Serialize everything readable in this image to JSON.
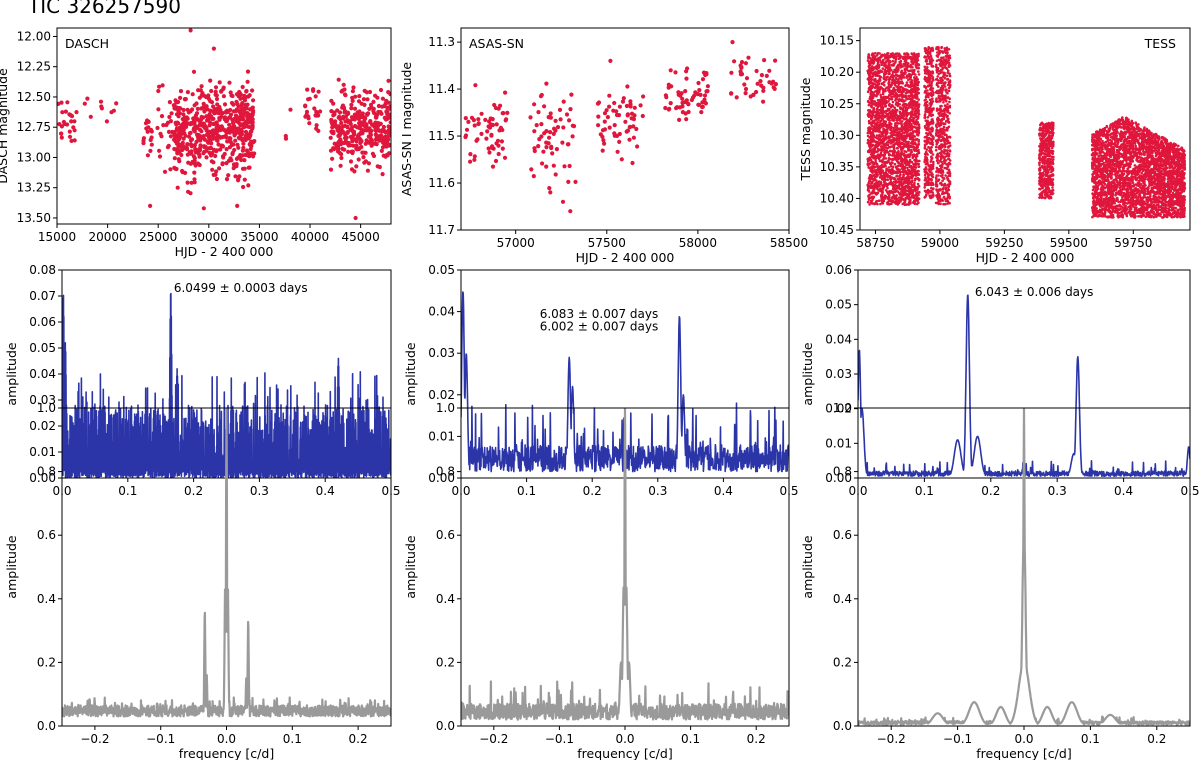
{
  "figure_title": "TIC 326257590",
  "colors": {
    "light_curve": "#e0163c",
    "periodogram": "#2b35a8",
    "window": "#9a9a9a"
  },
  "chart_data": [
    {
      "id": "p11",
      "type": "scatter",
      "label": "DASCH",
      "xlabel": "HJD - 2 400 000",
      "ylabel": "DASCH magnitude",
      "xlim": [
        15000,
        48000
      ],
      "ylim": [
        13.55,
        11.93
      ],
      "y_inverted": true,
      "xticks": [
        15000,
        20000,
        25000,
        30000,
        35000,
        40000,
        45000
      ],
      "xtick_labels": [
        "15000",
        "20000",
        "25000",
        "30000",
        "35000",
        "40000",
        "45000"
      ],
      "yticks": [
        12.0,
        12.25,
        12.5,
        12.75,
        13.0,
        13.25,
        13.5
      ],
      "ytick_labels": [
        "12.00",
        "12.25",
        "12.50",
        "12.75",
        "13.00",
        "13.25",
        "13.50"
      ],
      "clusters": [
        {
          "x": [
            15100,
            17000
          ],
          "y_center": 12.7,
          "y_spread": 0.28,
          "n": 25
        },
        {
          "x": [
            17500,
            22000
          ],
          "y_center": 12.65,
          "y_spread": 0.25,
          "n": 10
        },
        {
          "x": [
            23500,
            26500
          ],
          "y_center": 12.75,
          "y_spread": 0.4,
          "n": 40
        },
        {
          "x": [
            26500,
            34500
          ],
          "y_center": 12.78,
          "y_spread": 0.55,
          "n": 600
        },
        {
          "x": [
            37500,
            38500
          ],
          "y_center": 12.8,
          "y_spread": 0.45,
          "n": 3
        },
        {
          "x": [
            39500,
            41000
          ],
          "y_center": 12.6,
          "y_spread": 0.3,
          "n": 25
        },
        {
          "x": [
            42000,
            48000
          ],
          "y_center": 12.75,
          "y_spread": 0.45,
          "n": 340
        }
      ],
      "outliers": [
        {
          "x": 28200,
          "y": 11.95
        },
        {
          "x": 29500,
          "y": 13.42
        },
        {
          "x": 24200,
          "y": 13.4
        },
        {
          "x": 32800,
          "y": 13.4
        },
        {
          "x": 44500,
          "y": 13.5
        },
        {
          "x": 30500,
          "y": 12.1
        }
      ]
    },
    {
      "id": "p12",
      "type": "scatter",
      "label": "ASAS-SN",
      "xlabel": "HJD - 2 400 000",
      "ylabel": "ASAS-SN I magnitude",
      "xlim": [
        56700,
        58500
      ],
      "ylim": [
        11.7,
        11.27
      ],
      "y_inverted": true,
      "xticks": [
        57000,
        57500,
        58000,
        58500
      ],
      "xtick_labels": [
        "57000",
        "57500",
        "58000",
        "58500"
      ],
      "yticks": [
        11.3,
        11.4,
        11.5,
        11.6,
        11.7
      ],
      "ytick_labels": [
        "11.3",
        "11.4",
        "11.5",
        "11.6",
        "11.7"
      ],
      "clusters": [
        {
          "x": [
            56720,
            56960
          ],
          "y_center": 11.49,
          "y_spread": 0.11,
          "n": 60
        },
        {
          "x": [
            57080,
            57330
          ],
          "y_center": 11.5,
          "y_spread": 0.13,
          "n": 60
        },
        {
          "x": [
            57450,
            57700
          ],
          "y_center": 11.47,
          "y_spread": 0.1,
          "n": 60
        },
        {
          "x": [
            57820,
            58060
          ],
          "y_center": 11.42,
          "y_spread": 0.08,
          "n": 60
        },
        {
          "x": [
            58180,
            58430
          ],
          "y_center": 11.38,
          "y_spread": 0.08,
          "n": 40
        }
      ],
      "outliers": [
        {
          "x": 58190,
          "y": 11.3
        },
        {
          "x": 57300,
          "y": 11.66
        },
        {
          "x": 57260,
          "y": 11.64
        },
        {
          "x": 57520,
          "y": 11.34
        },
        {
          "x": 57190,
          "y": 11.62
        }
      ]
    },
    {
      "id": "p13",
      "type": "scatter",
      "label": "TESS",
      "xlabel": "HJD - 2 400 000",
      "ylabel": "TESS magnitude",
      "xlim": [
        58690,
        59970
      ],
      "ylim": [
        10.45,
        10.13
      ],
      "y_inverted": true,
      "xticks": [
        58750,
        59000,
        59250,
        59500,
        59750
      ],
      "xtick_labels": [
        "58750",
        "59000",
        "59250",
        "59500",
        "59750"
      ],
      "yticks": [
        10.15,
        10.2,
        10.25,
        10.3,
        10.35,
        10.4,
        10.45
      ],
      "ytick_labels": [
        "10.15",
        "10.20",
        "10.25",
        "10.30",
        "10.35",
        "10.40",
        "10.45"
      ],
      "clusters": [
        {
          "x": [
            58720,
            58920
          ],
          "y_range": [
            10.17,
            10.41
          ],
          "n": 2600,
          "dense": true
        },
        {
          "x": [
            58940,
            58975
          ],
          "y_range": [
            10.16,
            10.4
          ],
          "n": 400,
          "dense": true
        },
        {
          "x": [
            58985,
            59040
          ],
          "y_range": [
            10.16,
            10.41
          ],
          "n": 600,
          "dense": true
        },
        {
          "x": [
            59385,
            59440
          ],
          "y_range": [
            10.28,
            10.4
          ],
          "n": 500,
          "dense": true
        },
        {
          "x": [
            59590,
            59950
          ],
          "y_range": [
            10.27,
            10.43
          ],
          "n": 3500,
          "dense": true,
          "bulge": true
        }
      ]
    },
    {
      "id": "p21",
      "type": "line",
      "series_role": "periodogram",
      "ylabel": "amplitude",
      "xlim": [
        0,
        0.5
      ],
      "ylim": [
        0,
        0.08
      ],
      "xticks": [
        0,
        0.1,
        0.2,
        0.3,
        0.4,
        0.5
      ],
      "xtick_labels": [
        "0.0",
        "0.1",
        "0.2",
        "0.3",
        "0.4",
        "0.5"
      ],
      "yticks": [
        0,
        0.01,
        0.02,
        0.03,
        0.04,
        0.05,
        0.06,
        0.07,
        0.08
      ],
      "ytick_labels": [
        "0.00",
        "0.01",
        "0.02",
        "0.03",
        "0.04",
        "0.05",
        "0.06",
        "0.07",
        "0.08"
      ],
      "noise": {
        "base": 0.028,
        "min": 0.0,
        "spikes_to": 0.041
      },
      "peaks": [
        {
          "x": 0.002,
          "y": 0.071,
          "w": 0.0015
        },
        {
          "x": 0.005,
          "y": 0.052,
          "w": 0.0015
        },
        {
          "x": 0.1653,
          "y": 0.072,
          "w": 0.0015
        },
        {
          "x": 0.175,
          "y": 0.042,
          "w": 0.0015
        },
        {
          "x": 0.42,
          "y": 0.046,
          "w": 0.0015
        }
      ],
      "annotations": [
        {
          "text": "6.0499 ± 0.0003 days",
          "x": 0.17,
          "y": 0.0715
        }
      ]
    },
    {
      "id": "p22",
      "type": "line",
      "series_role": "periodogram",
      "ylabel": "amplitude",
      "xlim": [
        0,
        0.5
      ],
      "ylim": [
        0,
        0.05
      ],
      "xticks": [
        0,
        0.1,
        0.2,
        0.3,
        0.4,
        0.5
      ],
      "xtick_labels": [
        "0.0",
        "0.1",
        "0.2",
        "0.3",
        "0.4",
        "0.5"
      ],
      "yticks": [
        0,
        0.01,
        0.02,
        0.03,
        0.04,
        0.05
      ],
      "ytick_labels": [
        "0.00",
        "0.01",
        "0.02",
        "0.03",
        "0.04",
        "0.05"
      ],
      "noise": {
        "base": 0.008,
        "min": 0.0015,
        "spikes_to": 0.018
      },
      "peaks": [
        {
          "x": 0.003,
          "y": 0.045,
          "w": 0.002
        },
        {
          "x": 0.008,
          "y": 0.03,
          "w": 0.002
        },
        {
          "x": 0.165,
          "y": 0.029,
          "w": 0.002
        },
        {
          "x": 0.17,
          "y": 0.022,
          "w": 0.002
        },
        {
          "x": 0.333,
          "y": 0.039,
          "w": 0.002
        },
        {
          "x": 0.339,
          "y": 0.02,
          "w": 0.002
        }
      ],
      "annotations": [
        {
          "text": "6.083 ± 0.007 days",
          "x": 0.12,
          "y": 0.0385
        },
        {
          "text": "6.002 ± 0.007 days",
          "x": 0.12,
          "y": 0.0355
        }
      ]
    },
    {
      "id": "p23",
      "type": "line",
      "series_role": "periodogram",
      "ylabel": "amplitude",
      "xlim": [
        0,
        0.5
      ],
      "ylim": [
        0,
        0.06
      ],
      "xticks": [
        0,
        0.1,
        0.2,
        0.3,
        0.4,
        0.5
      ],
      "xtick_labels": [
        "0.0",
        "0.1",
        "0.2",
        "0.3",
        "0.4",
        "0.5"
      ],
      "yticks": [
        0,
        0.01,
        0.02,
        0.03,
        0.04,
        0.05,
        0.06
      ],
      "ytick_labels": [
        "0.00",
        "0.01",
        "0.02",
        "0.03",
        "0.04",
        "0.05",
        "0.06"
      ],
      "noise": {
        "base": 0.002,
        "min": 0.0005,
        "spikes_to": 0.005
      },
      "peaks": [
        {
          "x": 0.002,
          "y": 0.037,
          "w": 0.002
        },
        {
          "x": 0.006,
          "y": 0.02,
          "w": 0.003
        },
        {
          "x": 0.1653,
          "y": 0.053,
          "w": 0.0025
        },
        {
          "x": 0.15,
          "y": 0.011,
          "w": 0.005
        },
        {
          "x": 0.18,
          "y": 0.012,
          "w": 0.005
        },
        {
          "x": 0.331,
          "y": 0.035,
          "w": 0.0025
        },
        {
          "x": 0.325,
          "y": 0.007,
          "w": 0.004
        },
        {
          "x": 0.498,
          "y": 0.009,
          "w": 0.002
        }
      ],
      "annotations": [
        {
          "text": "6.043 ± 0.006 days",
          "x": 0.176,
          "y": 0.0525
        }
      ]
    },
    {
      "id": "p31",
      "type": "line",
      "series_role": "window",
      "xlabel": "frequency [c/d]",
      "ylabel": "amplitude",
      "xlim": [
        -0.25,
        0.25
      ],
      "ylim": [
        0,
        1.0
      ],
      "xticks": [
        -0.2,
        -0.1,
        0,
        0.1,
        0.2
      ],
      "xtick_labels": [
        "−0.2",
        "−0.1",
        "0.0",
        "0.1",
        "0.2"
      ],
      "yticks": [
        0,
        0.2,
        0.4,
        0.6,
        0.8,
        1.0
      ],
      "ytick_labels": [
        "0.0",
        "0.2",
        "0.4",
        "0.6",
        "0.8",
        "1.0"
      ],
      "noise": {
        "base": 0.065,
        "min": 0.03,
        "spikes_to": 0.09
      },
      "peaks": [
        {
          "x": 0.0,
          "y": 1.0,
          "w": 0.0007
        },
        {
          "x": -0.002,
          "y": 0.44,
          "w": 0.001
        },
        {
          "x": 0.002,
          "y": 0.44,
          "w": 0.001
        },
        {
          "x": -0.033,
          "y": 0.37,
          "w": 0.0008
        },
        {
          "x": 0.033,
          "y": 0.34,
          "w": 0.0008
        },
        {
          "x": -0.03,
          "y": 0.16,
          "w": 0.0008
        },
        {
          "x": 0.03,
          "y": 0.15,
          "w": 0.0008
        }
      ]
    },
    {
      "id": "p32",
      "type": "line",
      "series_role": "window",
      "xlabel": "frequency [c/d]",
      "ylabel": "amplitude",
      "xlim": [
        -0.25,
        0.25
      ],
      "ylim": [
        0,
        1.0
      ],
      "xticks": [
        -0.2,
        -0.1,
        0,
        0.1,
        0.2
      ],
      "xtick_labels": [
        "−0.2",
        "−0.1",
        "0.0",
        "0.1",
        "0.2"
      ],
      "yticks": [
        0,
        0.2,
        0.4,
        0.6,
        0.8,
        1.0
      ],
      "ytick_labels": [
        "0.0",
        "0.2",
        "0.4",
        "0.6",
        "0.8",
        "1.0"
      ],
      "noise": {
        "base": 0.07,
        "min": 0.02,
        "spikes_to": 0.14
      },
      "peaks": [
        {
          "x": 0.0,
          "y": 1.0,
          "w": 0.0008
        },
        {
          "x": -0.002,
          "y": 0.44,
          "w": 0.0015
        },
        {
          "x": 0.002,
          "y": 0.44,
          "w": 0.0015
        },
        {
          "x": -0.006,
          "y": 0.2,
          "w": 0.002
        },
        {
          "x": 0.006,
          "y": 0.2,
          "w": 0.002
        }
      ]
    },
    {
      "id": "p33",
      "type": "line",
      "series_role": "window",
      "xlabel": "frequency [c/d]",
      "ylabel": "amplitude",
      "xlim": [
        -0.25,
        0.25
      ],
      "ylim": [
        0,
        1.0
      ],
      "xticks": [
        -0.2,
        -0.1,
        0,
        0.1,
        0.2
      ],
      "xtick_labels": [
        "−0.2",
        "−0.1",
        "0.0",
        "0.1",
        "0.2"
      ],
      "yticks": [
        0,
        0.2,
        0.4,
        0.6,
        0.8,
        1.0
      ],
      "ytick_labels": [
        "0.0",
        "0.2",
        "0.4",
        "0.6",
        "0.8",
        "1.0"
      ],
      "noise": {
        "base": 0.015,
        "min": 0.005,
        "spikes_to": 0.03
      },
      "peaks": [
        {
          "x": 0.0,
          "y": 1.0,
          "w": 0.0008
        },
        {
          "x": 0.0,
          "y": 0.62,
          "w": 0.0025
        },
        {
          "x": 0.0,
          "y": 0.2,
          "w": 0.008
        },
        {
          "x": -0.035,
          "y": 0.06,
          "w": 0.007
        },
        {
          "x": 0.035,
          "y": 0.06,
          "w": 0.007
        },
        {
          "x": -0.075,
          "y": 0.075,
          "w": 0.008
        },
        {
          "x": 0.072,
          "y": 0.075,
          "w": 0.008
        },
        {
          "x": -0.13,
          "y": 0.04,
          "w": 0.008
        },
        {
          "x": 0.13,
          "y": 0.035,
          "w": 0.008
        }
      ]
    }
  ]
}
